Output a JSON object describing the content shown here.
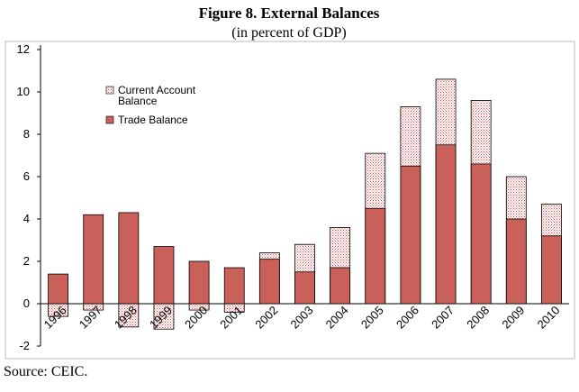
{
  "chart_data": {
    "type": "bar",
    "title": "Figure 8. External Balances",
    "subtitle": "(in percent of GDP)",
    "source": "Source: CEIC.",
    "categories": [
      "1996",
      "1997",
      "1998",
      "1999",
      "2000",
      "2001",
      "2002",
      "2003",
      "2004",
      "2005",
      "2006",
      "2007",
      "2008",
      "2009",
      "2010"
    ],
    "series": [
      {
        "name": "Current Account Balance",
        "color": "#d9504a",
        "pattern": "hatch",
        "values": [
          -0.6,
          -0.3,
          -1.1,
          -1.2,
          -0.3,
          -0.4,
          2.4,
          2.8,
          3.6,
          7.1,
          9.3,
          10.6,
          9.6,
          6.0,
          4.7
        ]
      },
      {
        "name": "Trade Balance",
        "color": "#c9605a",
        "pattern": "solid",
        "values": [
          1.4,
          4.2,
          4.3,
          2.7,
          2.0,
          1.7,
          2.1,
          1.5,
          1.7,
          4.5,
          6.5,
          7.5,
          6.6,
          4.0,
          3.2
        ]
      }
    ],
    "ylim": [
      -2,
      12
    ],
    "yticks": [
      -2,
      0,
      2,
      4,
      6,
      8,
      10,
      12
    ],
    "grid": false,
    "legend": "upper left"
  }
}
